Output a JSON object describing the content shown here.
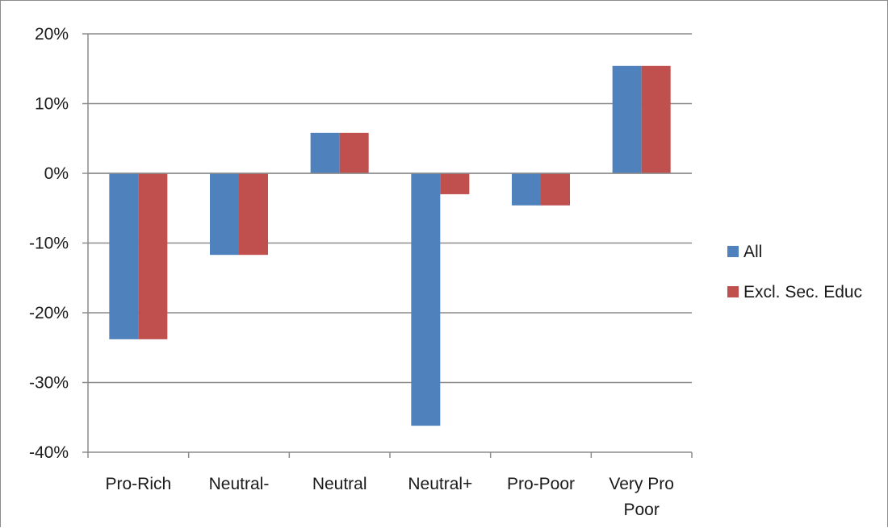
{
  "chart_data": {
    "type": "bar",
    "title": "",
    "xlabel": "",
    "ylabel": "",
    "categories": [
      [
        "Pro-Rich"
      ],
      [
        "Neutral-"
      ],
      [
        "Neutral"
      ],
      [
        "Neutral+"
      ],
      [
        "Pro-Poor"
      ],
      [
        "Very Pro",
        "Poor"
      ]
    ],
    "series": [
      {
        "name": "All",
        "color": "#4f81bd",
        "values": [
          -23.8,
          -11.7,
          5.8,
          -36.2,
          -4.6,
          15.4
        ]
      },
      {
        "name": "Excl. Sec. Educ",
        "color": "#c0504d",
        "values": [
          -23.8,
          -11.7,
          5.8,
          -3.0,
          -4.6,
          15.4
        ]
      }
    ],
    "ylim": [
      -40,
      20
    ],
    "yticks": [
      20,
      10,
      0,
      -10,
      -20,
      -30,
      -40
    ],
    "ytick_format": "percent",
    "grid": true,
    "gridline_color": "#8c8c8c",
    "legend_position": "right"
  }
}
